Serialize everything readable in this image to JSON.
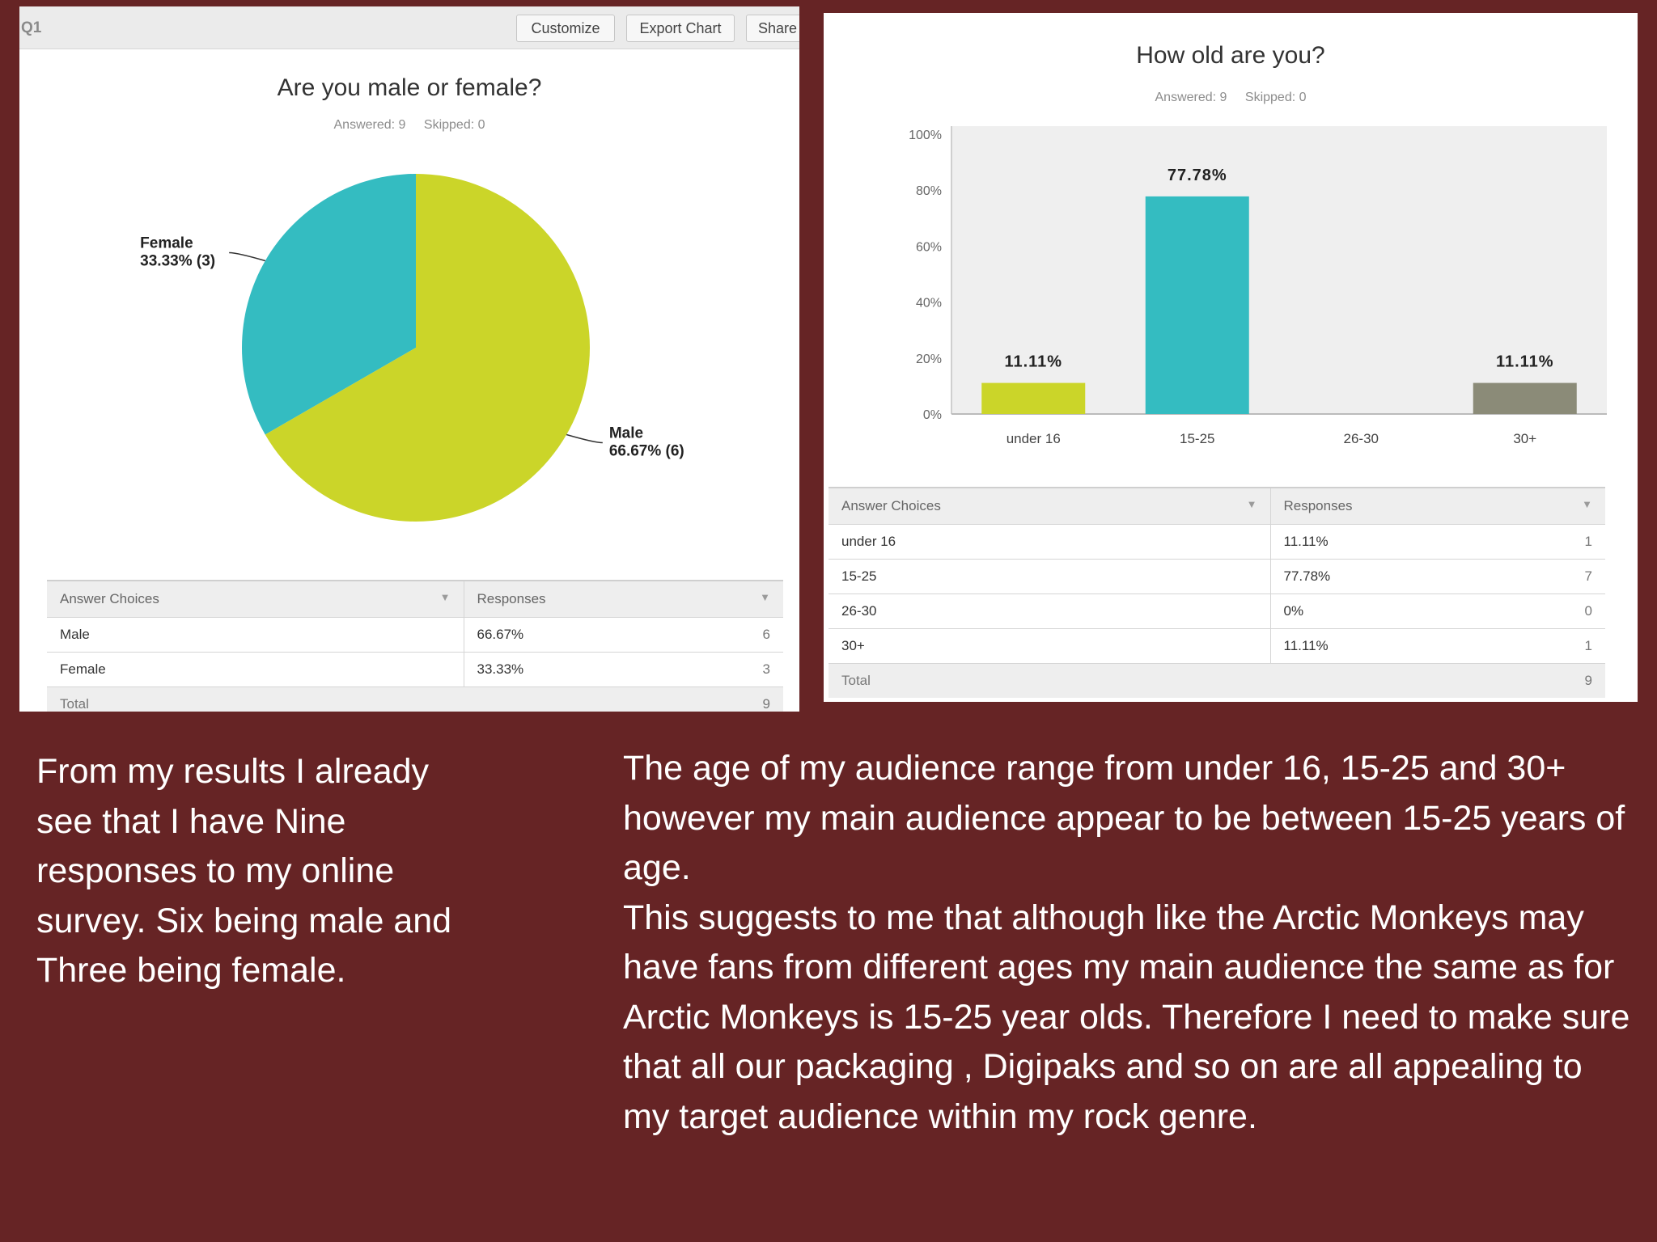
{
  "left_panel": {
    "question_label": "Q1",
    "toolbar": {
      "customize_label": "Customize",
      "export_label": "Export Chart",
      "share_label": "Share"
    }
  },
  "chart_data": [
    {
      "type": "pie",
      "title": "Are you male or female?",
      "answered": "Answered: 9",
      "skipped": "Skipped: 0",
      "categories": [
        "Female",
        "Male"
      ],
      "values": [
        33.33,
        66.67
      ],
      "counts": [
        3,
        6
      ],
      "slice_labels": [
        "33.33% (3)",
        "66.67% (6)"
      ],
      "colors": [
        "#34bcc1",
        "#cbd529"
      ],
      "table": {
        "headers": [
          "Answer Choices",
          "Responses"
        ],
        "rows": [
          {
            "choice": "Male",
            "percent": "66.67%",
            "count": "6"
          },
          {
            "choice": "Female",
            "percent": "33.33%",
            "count": "3"
          }
        ],
        "total_label": "Total",
        "total_value": "9"
      }
    },
    {
      "type": "bar",
      "title": "How old are you?",
      "answered": "Answered: 9",
      "skipped": "Skipped: 0",
      "categories": [
        "under 16",
        "15-25",
        "26-30",
        "30+"
      ],
      "values": [
        11.11,
        77.78,
        0,
        11.11
      ],
      "value_labels": [
        "11.11%",
        "77.78%",
        "",
        "11.11%"
      ],
      "colors": [
        "#cbd529",
        "#34bcc1",
        "#cccccc",
        "#8b8b78"
      ],
      "ylim": [
        0,
        100
      ],
      "yticks": [
        "0%",
        "20%",
        "40%",
        "60%",
        "80%",
        "100%"
      ],
      "grid": true,
      "table": {
        "headers": [
          "Answer Choices",
          "Responses"
        ],
        "rows": [
          {
            "choice": "under 16",
            "percent": "11.11%",
            "count": "1"
          },
          {
            "choice": "15-25",
            "percent": "77.78%",
            "count": "7"
          },
          {
            "choice": "26-30",
            "percent": "0%",
            "count": "0"
          },
          {
            "choice": "30+",
            "percent": "11.11%",
            "count": "1"
          }
        ],
        "total_label": "Total",
        "total_value": "9"
      }
    }
  ],
  "captions": {
    "left": "From my results I already see that I have Nine responses to my online survey. Six being male and Three being female.",
    "right_1": "The age of my audience range from under 16, 15-25 and 30+ however my main audience appear to be  between 15-25 years of age.",
    "right_2": "This suggests to me that although like the Arctic Monkeys may have fans from different ages my main audience the same as for Arctic Monkeys is 15-25 year olds. Therefore I need to make sure that all our packaging , Digipaks and so on are all appealing to my target audience within my rock genre."
  }
}
